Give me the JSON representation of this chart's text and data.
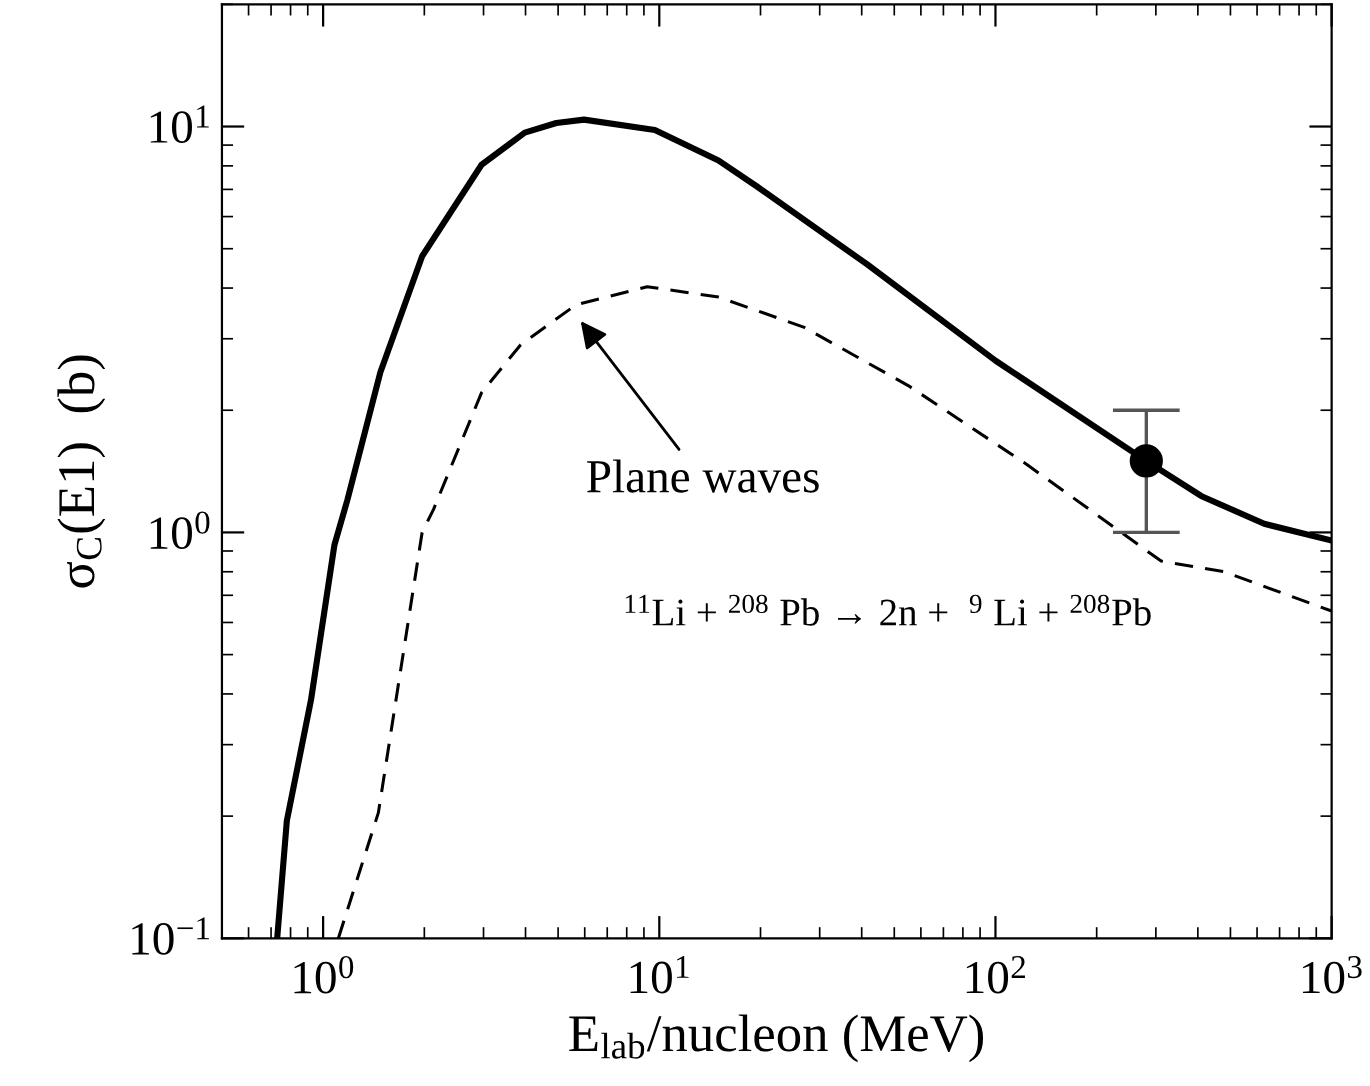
{
  "chart_data": {
    "type": "line",
    "xlabel": "E$_{lab}$/nucleon (MeV)",
    "ylabel": "σ$_{C}$(E1)  (b)",
    "log": "xy",
    "xlim": [
      0.5,
      1000
    ],
    "ylim": [
      0.1,
      20
    ],
    "xticks": [
      {
        "value": 1,
        "label": "10$^{0}$"
      },
      {
        "value": 10,
        "label": "10$^{1}$"
      },
      {
        "value": 100,
        "label": "10$^{2}$"
      },
      {
        "value": 1000,
        "label": "10$^{3}$"
      }
    ],
    "yticks": [
      {
        "value": 0.1,
        "label": "10$^{−1}$"
      },
      {
        "value": 1,
        "label": "10$^{0}$"
      },
      {
        "value": 10,
        "label": "10$^{1}$"
      }
    ],
    "series": [
      {
        "color": "#000000",
        "line_style": "solid",
        "marker": "none",
        "x": [
          0.73,
          0.78,
          0.92,
          1.08,
          1.18,
          1.48,
          1.97,
          2.96,
          3.98,
          4.94,
          5.97,
          9.7,
          15,
          19.6,
          41.6,
          100,
          281,
          409,
          630,
          1000
        ],
        "values": [
          0.1,
          0.195,
          0.386,
          0.93,
          1.2,
          2.48,
          4.79,
          8.05,
          9.66,
          10.2,
          10.4,
          9.8,
          8.25,
          7.1,
          4.57,
          2.65,
          1.5,
          1.23,
          1.05,
          0.955
        ]
      },
      {
        "type": "line",
        "color": "#000000",
        "line_style": "dashed",
        "marker": "none",
        "x": [
          1.11,
          1.46,
          1.97,
          2.13,
          2.96,
          3.87,
          5.66,
          9.2,
          15,
          27,
          55,
          124,
          311,
          479,
          1000
        ],
        "values": [
          0.1,
          0.204,
          1.0,
          1.14,
          2.21,
          2.9,
          3.64,
          4.03,
          3.8,
          3.2,
          2.3,
          1.47,
          0.85,
          0.8,
          0.64
        ]
      },
      {
        "type": "scatter",
        "color": "#000000",
        "marker": "circle",
        "x": [
          281
        ],
        "values": [
          1.5
        ],
        "errors": [
          [
            1.0,
            2.0
          ]
        ]
      }
    ],
    "annotations": [
      {
        "text": "Plane waves",
        "x": 5.7,
        "y": 3.4
      },
      "$^{11}$Li + $^{208}$ Pb → 2n +  $^{9}$ Li + $^{208}$Pb"
    ]
  }
}
